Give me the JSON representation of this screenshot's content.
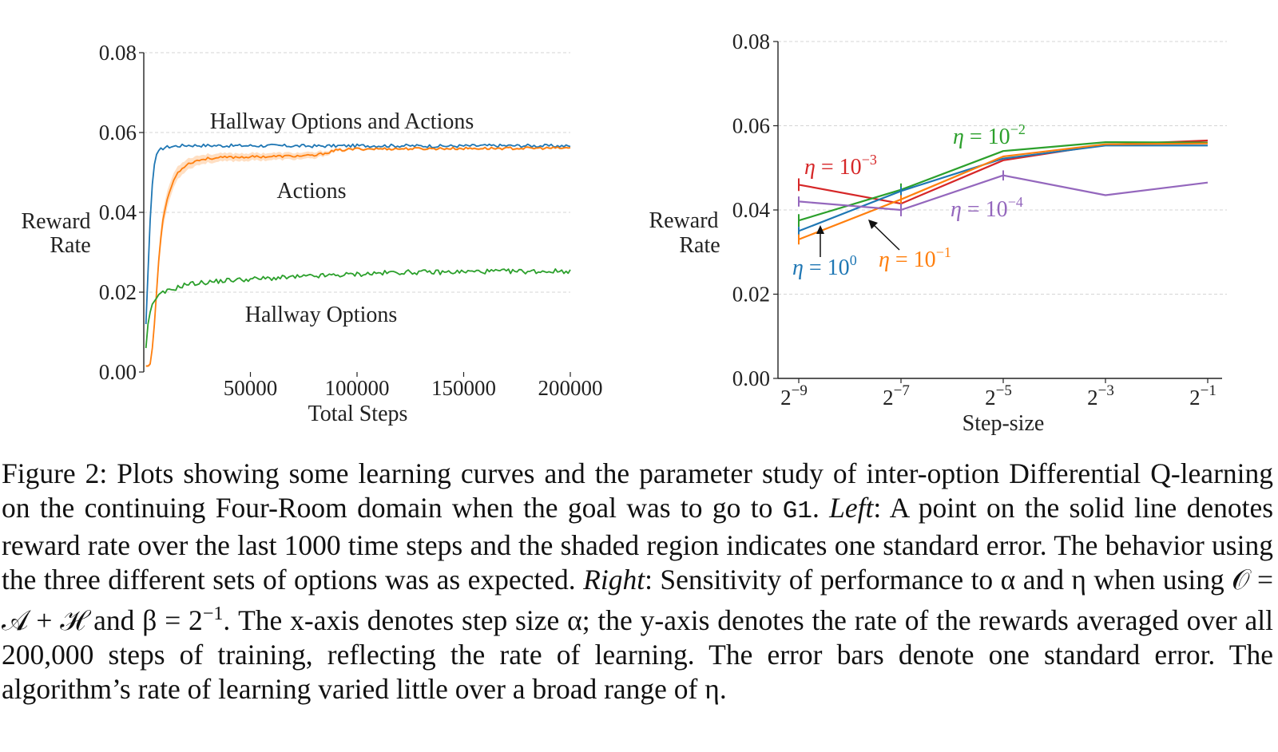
{
  "colors": {
    "blue": "#1f77b4",
    "orange": "#ff7f0e",
    "green": "#2ca02c",
    "red": "#d62728",
    "purple": "#9467bd",
    "grid": "#d5d5d5",
    "axis": "#222222"
  },
  "chart_data": [
    {
      "type": "line",
      "grid": "horizontal dashed",
      "xlabel": "Total Steps",
      "ylabel": "Reward Rate",
      "xlim": [
        0,
        200000
      ],
      "ylim": [
        0,
        0.08
      ],
      "xticks": [
        "50000",
        "100000",
        "150000",
        "200000"
      ],
      "yticks": [
        "0.00",
        "0.02",
        "0.04",
        "0.06",
        "0.08"
      ],
      "series": [
        {
          "name": "Hallway Options and Actions",
          "color": "#1f77b4",
          "x": [
            1000,
            2000,
            3000,
            4000,
            5000,
            6000,
            8000,
            10000,
            15000,
            20000,
            40000,
            60000,
            80000,
            100000,
            120000,
            140000,
            160000,
            180000,
            200000
          ],
          "y": [
            0.012,
            0.025,
            0.038,
            0.047,
            0.052,
            0.0545,
            0.0558,
            0.0563,
            0.0566,
            0.0568,
            0.0567,
            0.0567,
            0.0566,
            0.0567,
            0.0567,
            0.0566,
            0.0567,
            0.0567,
            0.0566
          ],
          "noise": 0.0004
        },
        {
          "name": "Actions",
          "color": "#ff7f0e",
          "shaded": "one standard error",
          "x": [
            1000,
            2000,
            3000,
            4000,
            5000,
            6000,
            7000,
            8000,
            9000,
            10000,
            12000,
            14000,
            16000,
            20000,
            25000,
            30000,
            40000,
            60000,
            80000,
            90000,
            100000,
            150000,
            200000
          ],
          "y": [
            0.0015,
            0.0015,
            0.002,
            0.006,
            0.012,
            0.02,
            0.028,
            0.034,
            0.038,
            0.041,
            0.045,
            0.048,
            0.05,
            0.052,
            0.053,
            0.0535,
            0.0538,
            0.054,
            0.0542,
            0.0555,
            0.0559,
            0.056,
            0.0561
          ],
          "se": [
            0.0003,
            0.0003,
            0.0006,
            0.0012,
            0.0018,
            0.0022,
            0.0024,
            0.0024,
            0.0023,
            0.0022,
            0.002,
            0.0018,
            0.0016,
            0.0014,
            0.0012,
            0.0011,
            0.001,
            0.0009,
            0.0008,
            0.0004,
            0.0003,
            0.0003,
            0.0003
          ],
          "noise": 0.0003
        },
        {
          "name": "Hallway Options",
          "color": "#2ca02c",
          "shaded": "one standard error",
          "x": [
            1000,
            2000,
            3000,
            4000,
            6000,
            8000,
            10000,
            15000,
            20000,
            40000,
            60000,
            80000,
            100000,
            120000,
            140000,
            160000,
            180000,
            200000
          ],
          "y": [
            0.006,
            0.012,
            0.015,
            0.017,
            0.0185,
            0.0195,
            0.02,
            0.021,
            0.022,
            0.023,
            0.0235,
            0.024,
            0.0245,
            0.025,
            0.025,
            0.0252,
            0.0252,
            0.0253
          ],
          "noise": 0.0006
        }
      ],
      "annotations": [
        {
          "text": "Hallway Options and Actions",
          "color": "#1f77b4"
        },
        {
          "text": "Actions",
          "color": "#ff7f0e"
        },
        {
          "text": "Hallway Options",
          "color": "#2ca02c"
        }
      ]
    },
    {
      "type": "line",
      "grid": "horizontal dashed",
      "xlabel": "Step-size",
      "ylabel": "Reward Rate",
      "ylim": [
        0,
        0.08
      ],
      "x": [
        -9,
        -7,
        -5,
        -3,
        -1
      ],
      "xtick_base": "2",
      "xtick_exponents": [
        "−9",
        "−7",
        "−5",
        "−3",
        "−1"
      ],
      "yticks": [
        "0.00",
        "0.02",
        "0.04",
        "0.06",
        "0.08"
      ],
      "series": [
        {
          "eta_base": "10",
          "eta_exp": "−3",
          "color": "#d62728",
          "y": [
            0.046,
            0.0415,
            0.0518,
            0.0555,
            0.0565
          ],
          "err": [
            0.0015,
            0.001,
            0.0005,
            0.0003,
            0.0003
          ]
        },
        {
          "eta_base": "10",
          "eta_exp": "−2",
          "color": "#2ca02c",
          "y": [
            0.0375,
            0.0448,
            0.054,
            0.0561,
            0.056
          ],
          "err": [
            0.0015,
            0.0015,
            0.0004,
            0.0003,
            0.0003
          ]
        },
        {
          "eta_base": "10",
          "eta_exp": "0",
          "color": "#1f77b4",
          "y": [
            0.035,
            0.0445,
            0.0522,
            0.0553,
            0.0553
          ],
          "err": [
            0.001,
            0.001,
            0.0004,
            0.0003,
            0.0003
          ]
        },
        {
          "eta_base": "10",
          "eta_exp": "−1",
          "color": "#ff7f0e",
          "y": [
            0.033,
            0.0425,
            0.0527,
            0.0556,
            0.0558
          ],
          "err": [
            0.0012,
            0.001,
            0.0005,
            0.0003,
            0.0003
          ]
        },
        {
          "eta_base": "10",
          "eta_exp": "−4",
          "color": "#9467bd",
          "y": [
            0.042,
            0.04,
            0.0482,
            0.0435,
            0.0465
          ],
          "err": [
            0.0012,
            0.0015,
            0.0012,
            0.0003,
            0.0003
          ]
        }
      ],
      "annotations": [
        {
          "eta_exp": "−3",
          "color": "#d62728"
        },
        {
          "eta_exp": "−2",
          "color": "#2ca02c"
        },
        {
          "eta_exp": "−4",
          "color": "#9467bd"
        },
        {
          "eta_exp": "0",
          "color": "#1f77b4"
        },
        {
          "eta_exp": "−1",
          "color": "#ff7f0e"
        }
      ]
    }
  ],
  "caption": {
    "label": "Figure 2:",
    "text1": "Plots showing some learning curves and the parameter study of inter-option Differential Q-learning on the continuing Four-Room domain when the goal was to go to",
    "goal": "G1",
    "text2": ".",
    "left_label": "Left",
    "text3": ": A point on the solid line denotes reward rate over the last 1000 time steps and the shaded region indicates one standard error. The behavior using the three different sets of options was as expected.",
    "right_label": "Right",
    "text4": ": Sensitivity of performance to α and η when using 𝒪 = 𝒜 + ℋ and β = 2",
    "beta_exp": "−1",
    "text5": ". The x-axis denotes step size α; the y-axis denotes the rate of the rewards averaged over all 200,000 steps of training, reflecting the rate of learning. The error bars denote one standard error. The algorithm’s rate of learning varied little over a broad range of η."
  }
}
